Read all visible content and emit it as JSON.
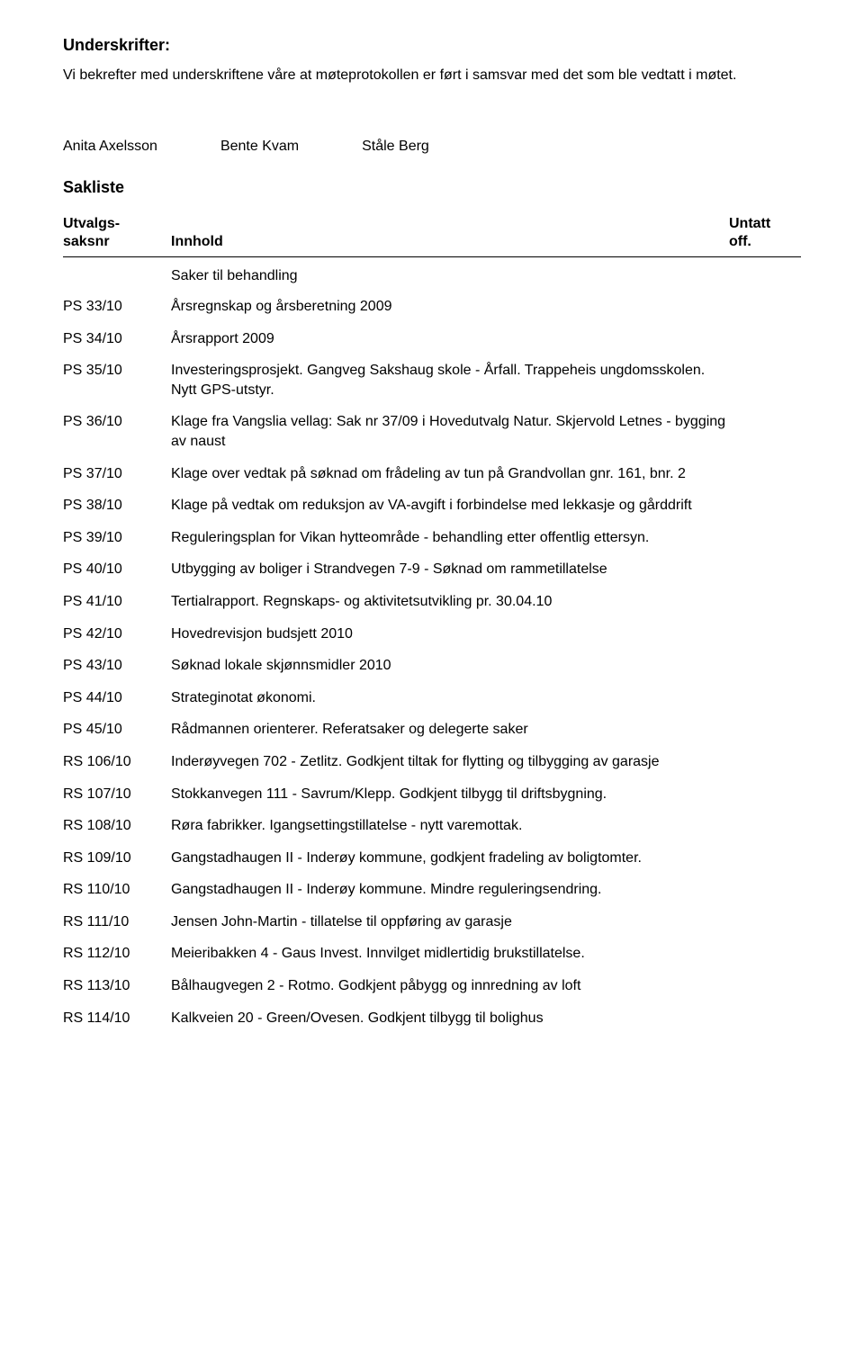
{
  "heading": "Underskrifter:",
  "intro": "Vi bekrefter med underskriftene våre at møteprotokollen er ført i samsvar med det som ble vedtatt i møtet.",
  "signatures": [
    "Anita Axelsson",
    "Bente Kvam",
    "Ståle Berg"
  ],
  "sakliste_title": "Sakliste",
  "header": {
    "left_line1": "Utvalgs-",
    "left_line2": "saksnr",
    "mid": "Innhold",
    "right_line1": "Untatt",
    "right_line2": "off."
  },
  "saker_til_behandling": "Saker til behandling",
  "rows": [
    {
      "code": "PS 33/10",
      "text": "Årsregnskap og årsberetning 2009"
    },
    {
      "code": "PS 34/10",
      "text": "Årsrapport 2009"
    },
    {
      "code": "PS 35/10",
      "text": "Investeringsprosjekt. Gangveg Sakshaug skole - Årfall. Trappeheis ungdomsskolen. Nytt GPS-utstyr."
    },
    {
      "code": "PS 36/10",
      "text": "Klage fra Vangslia vellag: Sak nr 37/09 i Hovedutvalg Natur. Skjervold Letnes - bygging av naust"
    },
    {
      "code": "PS 37/10",
      "text": "Klage over vedtak på søknad om frådeling av tun på Grandvollan gnr. 161, bnr. 2"
    },
    {
      "code": "PS 38/10",
      "text": "Klage på vedtak om reduksjon av VA-avgift i forbindelse med lekkasje og gårddrift"
    },
    {
      "code": "PS 39/10",
      "text": "Reguleringsplan for Vikan hytteområde - behandling etter offentlig ettersyn."
    },
    {
      "code": "PS 40/10",
      "text": "Utbygging av boliger i Strandvegen 7-9 - Søknad om rammetillatelse"
    },
    {
      "code": "PS 41/10",
      "text": "Tertialrapport. Regnskaps- og aktivitetsutvikling pr. 30.04.10"
    },
    {
      "code": "PS 42/10",
      "text": "Hovedrevisjon budsjett 2010"
    },
    {
      "code": "PS 43/10",
      "text": "Søknad lokale skjønnsmidler 2010"
    },
    {
      "code": "PS 44/10",
      "text": "Strateginotat økonomi."
    },
    {
      "code": "PS 45/10",
      "text": "Rådmannen orienterer. Referatsaker og delegerte saker"
    },
    {
      "code": "RS 106/10",
      "text": "Inderøyvegen 702 - Zetlitz. Godkjent tiltak for flytting og tilbygging av garasje"
    },
    {
      "code": "RS 107/10",
      "text": "Stokkanvegen 111 - Savrum/Klepp. Godkjent tilbygg til driftsbygning."
    },
    {
      "code": "RS 108/10",
      "text": "Røra fabrikker. Igangsettingstillatelse - nytt varemottak."
    },
    {
      "code": "RS 109/10",
      "text": "Gangstadhaugen II - Inderøy kommune, godkjent fradeling av boligtomter."
    },
    {
      "code": "RS 110/10",
      "text": "Gangstadhaugen II - Inderøy kommune. Mindre reguleringsendring."
    },
    {
      "code": "RS 111/10",
      "text": "Jensen John-Martin - tillatelse til oppføring av garasje"
    },
    {
      "code": "RS 112/10",
      "text": "Meieribakken 4 - Gaus Invest. Innvilget midlertidig brukstillatelse."
    },
    {
      "code": "RS 113/10",
      "text": "Bålhaugvegen 2 - Rotmo. Godkjent påbygg og innredning av loft"
    },
    {
      "code": "RS 114/10",
      "text": "Kalkveien 20 - Green/Ovesen. Godkjent tilbygg til bolighus"
    }
  ]
}
